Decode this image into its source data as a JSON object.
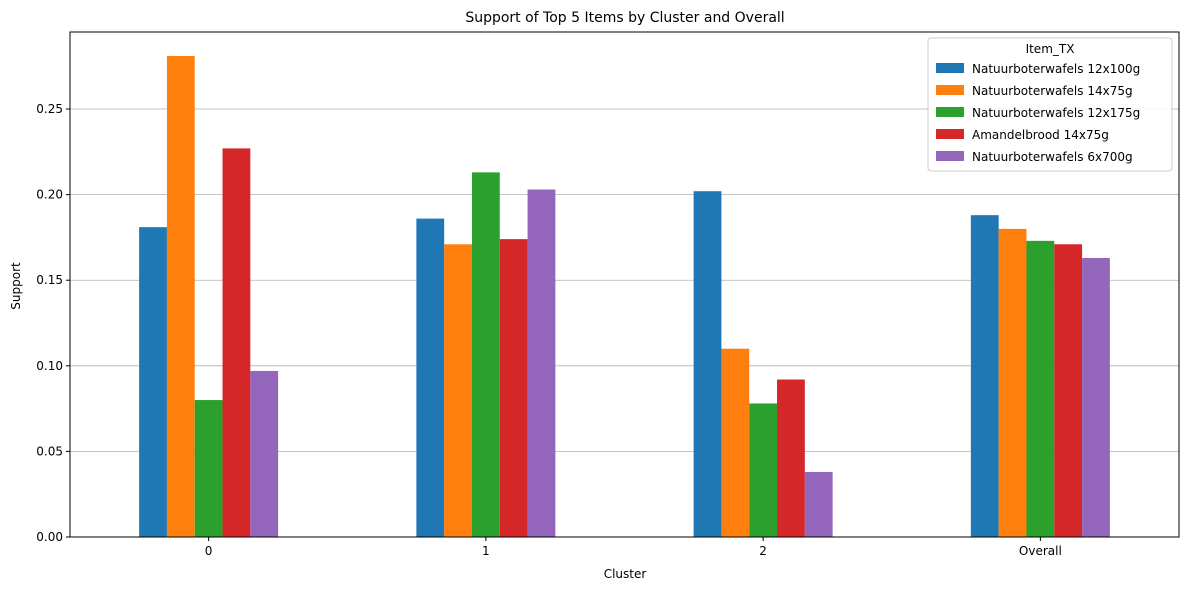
{
  "chart_data": {
    "type": "bar",
    "title": "Support of Top 5 Items by Cluster and Overall",
    "xlabel": "Cluster",
    "ylabel": "Support",
    "categories": [
      "0",
      "1",
      "2",
      "Overall"
    ],
    "ylim": [
      0,
      0.295
    ],
    "yticks": [
      "0.00",
      "0.05",
      "0.10",
      "0.15",
      "0.20",
      "0.25"
    ],
    "grid": "horizontal",
    "legend": {
      "title": "Item_TX",
      "placement": "top-right"
    },
    "series": [
      {
        "name": "Natuurboterwafels 12x100g",
        "color": "#1f77b4",
        "values": [
          0.181,
          0.186,
          0.202,
          0.188
        ]
      },
      {
        "name": "Natuurboterwafels 14x75g",
        "color": "#ff7f0e",
        "values": [
          0.281,
          0.171,
          0.11,
          0.18
        ]
      },
      {
        "name": "Natuurboterwafels 12x175g",
        "color": "#2ca02c",
        "values": [
          0.08,
          0.213,
          0.078,
          0.173
        ]
      },
      {
        "name": "Amandelbrood 14x75g",
        "color": "#d62728",
        "values": [
          0.227,
          0.174,
          0.092,
          0.171
        ]
      },
      {
        "name": "Natuurboterwafels 6x700g",
        "color": "#9467bd",
        "values": [
          0.097,
          0.203,
          0.038,
          0.163
        ]
      }
    ]
  }
}
